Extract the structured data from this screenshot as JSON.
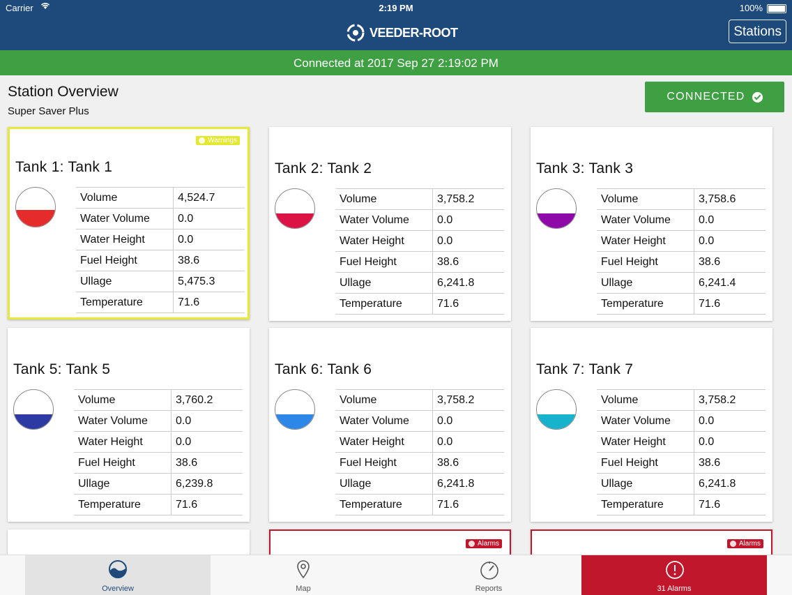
{
  "status": {
    "carrier": "Carrier",
    "time": "2:19 PM",
    "battery": "100%"
  },
  "header": {
    "logo": "VEEDER-ROOT",
    "stations_label": "Stations"
  },
  "connection_banner": "Connected at 2017 Sep 27 2:19:02 PM",
  "page": {
    "title": "Station Overview",
    "subtitle": "Super Saver Plus",
    "connected_label": "CONNECTED"
  },
  "labels": [
    "Volume",
    "Water Volume",
    "Water Height",
    "Fuel Height",
    "Ullage",
    "Temperature"
  ],
  "tanks": [
    {
      "name": "Tank 1: Tank 1",
      "badge": "Warnings",
      "fill": "#e62b2b",
      "level": 0.42,
      "values": [
        "4,524.7",
        "0.0",
        "0.0",
        "38.6",
        "5,475.3",
        "71.6"
      ]
    },
    {
      "name": "Tank 2: Tank 2",
      "badge": "",
      "fill": "#dc1446",
      "level": 0.38,
      "values": [
        "3,758.2",
        "0.0",
        "0.0",
        "38.6",
        "6,241.8",
        "71.6"
      ]
    },
    {
      "name": "Tank 3: Tank 3",
      "badge": "",
      "fill": "#8e0aa8",
      "level": 0.38,
      "values": [
        "3,758.6",
        "0.0",
        "0.0",
        "38.6",
        "6,241.4",
        "71.6"
      ]
    },
    {
      "name": "Tank 5: Tank 5",
      "badge": "",
      "fill": "#2e3aa3",
      "level": 0.38,
      "values": [
        "3,760.2",
        "0.0",
        "0.0",
        "38.6",
        "6,239.8",
        "71.6"
      ]
    },
    {
      "name": "Tank 6: Tank 6",
      "badge": "",
      "fill": "#2c87e8",
      "level": 0.38,
      "values": [
        "3,758.2",
        "0.0",
        "0.0",
        "38.6",
        "6,241.8",
        "71.6"
      ]
    },
    {
      "name": "Tank 7: Tank 7",
      "badge": "",
      "fill": "#17b2cc",
      "level": 0.38,
      "values": [
        "3,758.2",
        "0.0",
        "0.0",
        "38.6",
        "6,241.8",
        "71.6"
      ]
    }
  ],
  "bottom_badges": [
    "Alarms",
    "Alarms"
  ],
  "tabs": {
    "overview": "Overview",
    "map": "Map",
    "reports": "Reports",
    "alarms": "31 Alarms"
  },
  "colors": {
    "primary": "#1e4a7b",
    "success": "#3ea043",
    "warning": "#e4e830",
    "alarm": "#c0172c"
  }
}
